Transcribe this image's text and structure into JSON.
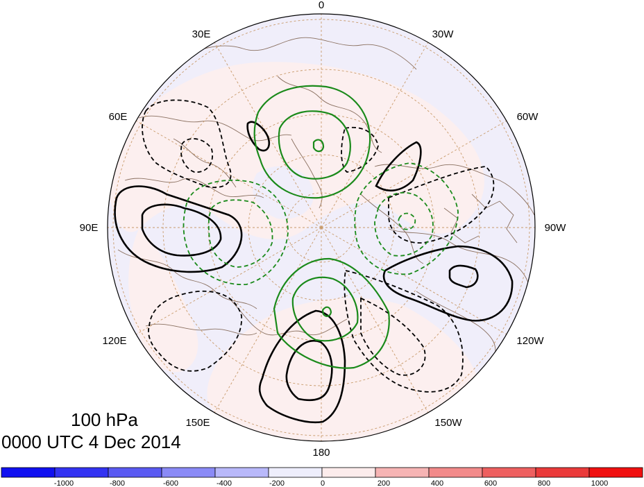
{
  "titles": {
    "level": "100 hPa",
    "valid_time": "0000 UTC 4 Dec 2014"
  },
  "longitude_labels": [
    "0",
    "30W",
    "60W",
    "90W",
    "120W",
    "150W",
    "180",
    "150E",
    "120E",
    "90E",
    "60E",
    "30E"
  ],
  "colorbar": {
    "tick_labels": [
      "-1000",
      "-800",
      "-600",
      "-400",
      "-200",
      "0",
      "200",
      "400",
      "600",
      "800",
      "1000"
    ],
    "colors": [
      "#1010f0",
      "#3232f2",
      "#5a5af2",
      "#8a8af6",
      "#b8b8fa",
      "#eeeefc",
      "#fcecec",
      "#f6b4b4",
      "#f28a8a",
      "#ee6060",
      "#ea3a3a",
      "#f01010"
    ]
  },
  "contour_colors": {
    "black": "#000000",
    "green": "#1a8a1a",
    "land_outline": "#8a7060",
    "graticule": "#c89a6a"
  }
}
